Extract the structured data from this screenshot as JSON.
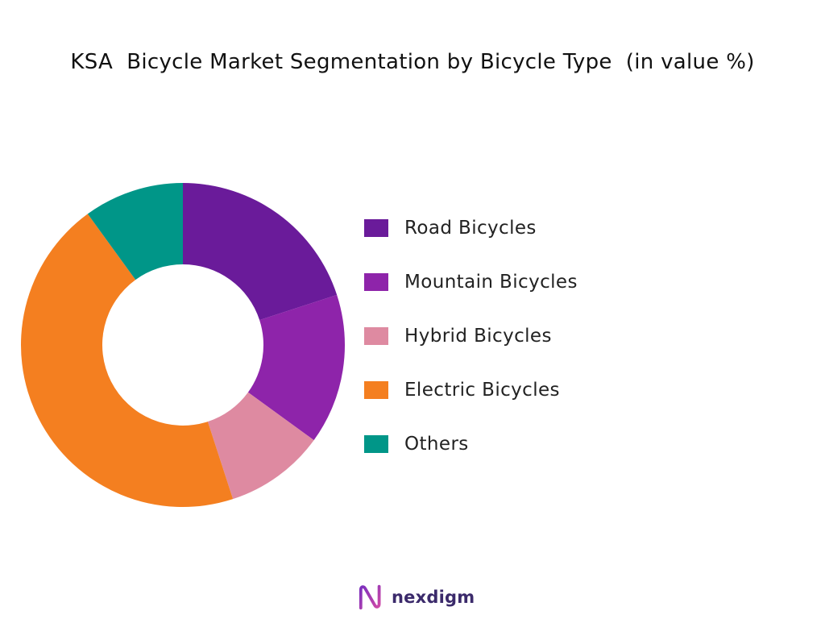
{
  "chart_data": {
    "type": "pie",
    "title": "KSA  Bicycle Market Segmentation by Bicycle Type  (in value %)",
    "series": [
      {
        "name": "Road Bicycles",
        "value": 20,
        "color": "#6a1b9a"
      },
      {
        "name": "Mountain Bicycles",
        "value": 15,
        "color": "#8e24aa"
      },
      {
        "name": "Hybrid Bicycles",
        "value": 10,
        "color": "#de8aa1"
      },
      {
        "name": "Electric Bicycles",
        "value": 45,
        "color": "#f47f20"
      },
      {
        "name": "Others",
        "value": 10,
        "color": "#009688"
      }
    ],
    "donut": true,
    "start_angle": "top",
    "direction": "clockwise",
    "legend_placement": "right"
  },
  "branding": {
    "name": "nexdigm",
    "icon": "nexdigm-logo-icon",
    "colors": {
      "text": "#3b2a6b",
      "mark_start": "#7b2fbe",
      "mark_end": "#d04aa7"
    }
  }
}
